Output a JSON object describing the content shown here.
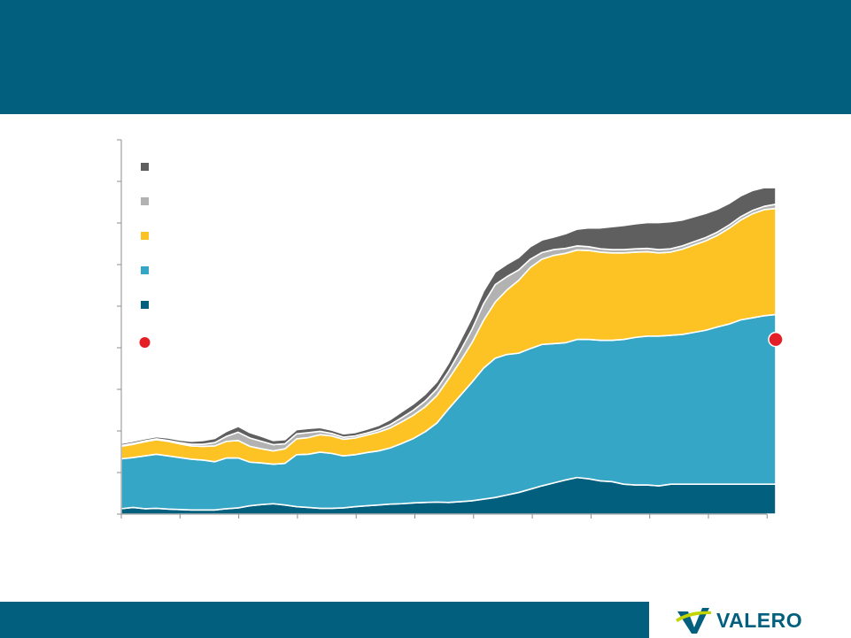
{
  "header": {
    "color": "#035f7e"
  },
  "footer": {
    "color": "#035f7e",
    "logo_text": "VALERO",
    "logo_mark": "valero-v-logo"
  },
  "chart_data": {
    "type": "area",
    "stacked": true,
    "grid": false,
    "legend_placement": "top-left",
    "ylim": [
      0,
      9
    ],
    "x": [
      0,
      1,
      2,
      3,
      4,
      5,
      6,
      7,
      8,
      9,
      10,
      11,
      12,
      13,
      14,
      15,
      16,
      17,
      18,
      19,
      20,
      21,
      22,
      23,
      24,
      25,
      26,
      27,
      28,
      29,
      30,
      31,
      32,
      33,
      34,
      35,
      36,
      37,
      38,
      39,
      40,
      41,
      42,
      43,
      44,
      45,
      46,
      47,
      48,
      49,
      50,
      51,
      52,
      53,
      54,
      55,
      56
    ],
    "series": [
      {
        "color": "#035f7e",
        "values": [
          0.13,
          0.16,
          0.13,
          0.14,
          0.12,
          0.11,
          0.1,
          0.1,
          0.1,
          0.13,
          0.15,
          0.2,
          0.23,
          0.25,
          0.22,
          0.18,
          0.16,
          0.14,
          0.14,
          0.15,
          0.18,
          0.2,
          0.22,
          0.24,
          0.25,
          0.27,
          0.28,
          0.29,
          0.28,
          0.3,
          0.32,
          0.36,
          0.4,
          0.46,
          0.52,
          0.6,
          0.68,
          0.75,
          0.82,
          0.88,
          0.85,
          0.8,
          0.78,
          0.72,
          0.7,
          0.7,
          0.68,
          0.72,
          0.72,
          0.72,
          0.72,
          0.72,
          0.72,
          0.72,
          0.72,
          0.72,
          0.72
        ]
      },
      {
        "color": "#36a6c6",
        "values": [
          1.2,
          1.2,
          1.27,
          1.3,
          1.28,
          1.25,
          1.22,
          1.2,
          1.16,
          1.22,
          1.2,
          1.05,
          1.0,
          0.95,
          1.0,
          1.25,
          1.28,
          1.35,
          1.32,
          1.25,
          1.25,
          1.28,
          1.3,
          1.35,
          1.45,
          1.55,
          1.7,
          1.9,
          2.25,
          2.55,
          2.85,
          3.15,
          3.35,
          3.38,
          3.35,
          3.38,
          3.4,
          3.35,
          3.3,
          3.32,
          3.35,
          3.38,
          3.4,
          3.48,
          3.55,
          3.58,
          3.6,
          3.58,
          3.6,
          3.65,
          3.7,
          3.78,
          3.85,
          3.95,
          4.0,
          4.05,
          4.08
        ]
      },
      {
        "color": "#fdc324",
        "values": [
          0.3,
          0.32,
          0.34,
          0.35,
          0.35,
          0.33,
          0.32,
          0.33,
          0.38,
          0.4,
          0.42,
          0.38,
          0.34,
          0.32,
          0.35,
          0.38,
          0.4,
          0.42,
          0.42,
          0.4,
          0.4,
          0.42,
          0.45,
          0.48,
          0.52,
          0.56,
          0.6,
          0.66,
          0.72,
          0.82,
          0.95,
          1.15,
          1.35,
          1.55,
          1.75,
          1.95,
          2.05,
          2.12,
          2.15,
          2.15,
          2.14,
          2.12,
          2.1,
          2.08,
          2.05,
          2.03,
          2.0,
          2.0,
          2.05,
          2.1,
          2.15,
          2.2,
          2.3,
          2.4,
          2.5,
          2.55,
          2.55
        ]
      },
      {
        "color": "#b2b2b2",
        "values": [
          0.02,
          0.02,
          0.02,
          0.02,
          0.02,
          0.03,
          0.04,
          0.05,
          0.08,
          0.12,
          0.2,
          0.2,
          0.18,
          0.15,
          0.12,
          0.12,
          0.12,
          0.08,
          0.06,
          0.05,
          0.05,
          0.05,
          0.06,
          0.08,
          0.1,
          0.12,
          0.14,
          0.16,
          0.18,
          0.25,
          0.32,
          0.4,
          0.42,
          0.32,
          0.25,
          0.2,
          0.16,
          0.14,
          0.12,
          0.1,
          0.09,
          0.08,
          0.08,
          0.08,
          0.08,
          0.08,
          0.08,
          0.08,
          0.08,
          0.08,
          0.08,
          0.08,
          0.08,
          0.08,
          0.08,
          0.08,
          0.1
        ]
      },
      {
        "color": "#5f5f5f",
        "values": [
          0.05,
          0.05,
          0.05,
          0.05,
          0.06,
          0.06,
          0.07,
          0.09,
          0.1,
          0.12,
          0.14,
          0.13,
          0.12,
          0.1,
          0.1,
          0.1,
          0.1,
          0.09,
          0.08,
          0.08,
          0.08,
          0.09,
          0.1,
          0.12,
          0.14,
          0.15,
          0.16,
          0.17,
          0.2,
          0.25,
          0.28,
          0.3,
          0.3,
          0.3,
          0.3,
          0.3,
          0.3,
          0.3,
          0.35,
          0.4,
          0.45,
          0.5,
          0.55,
          0.58,
          0.6,
          0.62,
          0.65,
          0.65,
          0.62,
          0.6,
          0.58,
          0.55,
          0.52,
          0.5,
          0.48,
          0.45,
          0.4
        ]
      }
    ],
    "point": {
      "color": "#e41e26",
      "x": 56,
      "y": 4.2
    }
  }
}
